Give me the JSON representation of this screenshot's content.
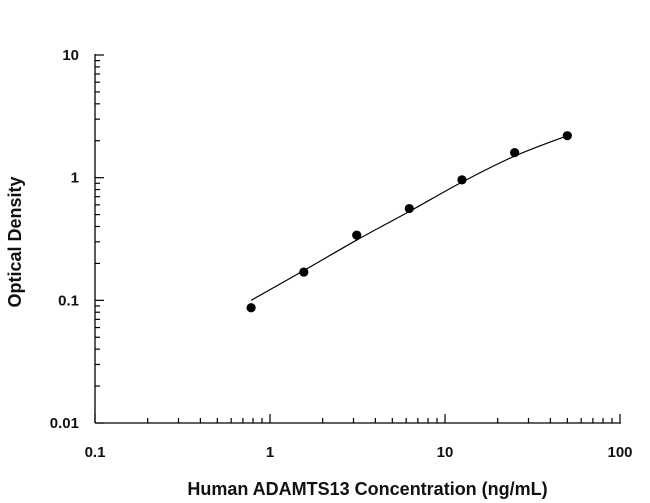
{
  "chart_data": {
    "type": "scatter",
    "xlabel": "Human ADAMTS13 Concentration (ng/mL)",
    "ylabel": "Optical Density",
    "x_scale": "log",
    "y_scale": "log",
    "xlim": [
      0.1,
      100
    ],
    "ylim": [
      0.01,
      10
    ],
    "x_ticks": [
      "0.1",
      "1",
      "10",
      "100"
    ],
    "y_ticks": [
      "0.01",
      "0.1",
      "1",
      "10"
    ],
    "grid": false,
    "series": [
      {
        "points": [
          {
            "x": 0.78,
            "y": 0.087
          },
          {
            "x": 1.56,
            "y": 0.17
          },
          {
            "x": 3.13,
            "y": 0.34
          },
          {
            "x": 6.25,
            "y": 0.56
          },
          {
            "x": 12.5,
            "y": 0.96
          },
          {
            "x": 25,
            "y": 1.6
          },
          {
            "x": 50,
            "y": 2.2
          }
        ],
        "fit_curve": {
          "x": [
            0.78,
            1.56,
            3.13,
            6.25,
            12.5,
            25,
            50
          ],
          "y": [
            0.1,
            0.175,
            0.31,
            0.53,
            0.92,
            1.5,
            2.2
          ]
        }
      }
    ]
  }
}
